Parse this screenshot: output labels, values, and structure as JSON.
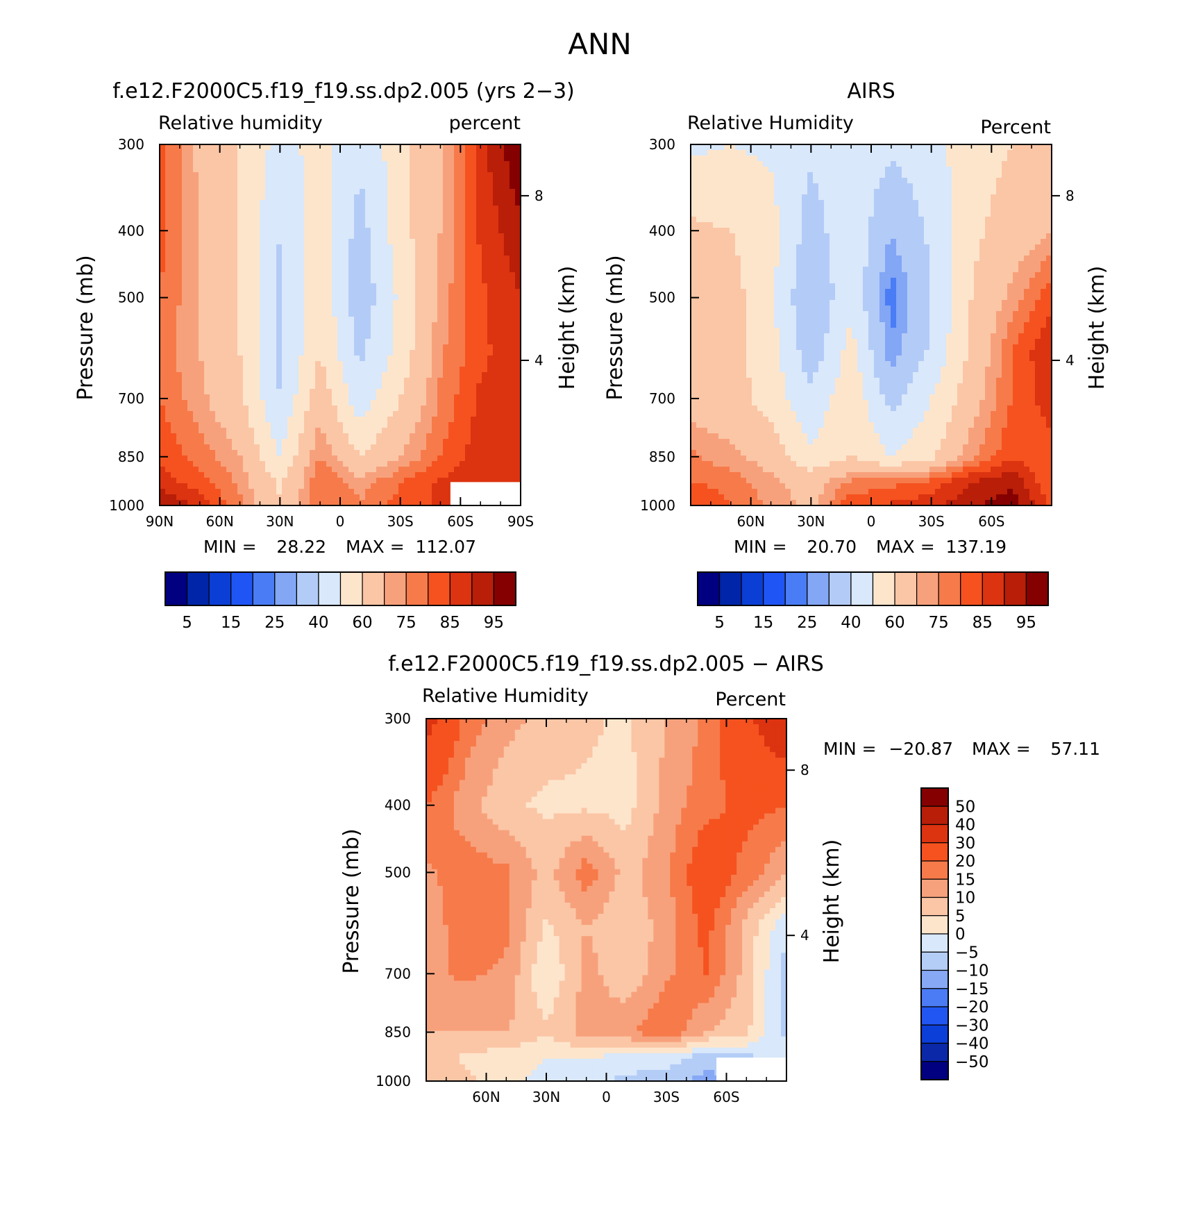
{
  "figure": {
    "title": "ANN",
    "colors": {
      "abs_palette": [
        "#000080",
        "#0025a8",
        "#0a3ed4",
        "#1f55f5",
        "#4a7cf5",
        "#83a6f5",
        "#b3cbf7",
        "#d9e8fa",
        "#fde5cc",
        "#fbc6a6",
        "#f7a17c",
        "#f77a4a",
        "#f5521f",
        "#dc3310",
        "#b81e08",
        "#850000"
      ],
      "diff_palette": [
        "#000080",
        "#0a28a8",
        "#0c3ed8",
        "#2156f2",
        "#4b7cf5",
        "#86a8f5",
        "#b4cdf7",
        "#d9e8fa",
        "#fde5cc",
        "#fbc6a6",
        "#f7a17c",
        "#f77a4a",
        "#f5521f",
        "#dc3310",
        "#b81e08",
        "#850000"
      ]
    }
  },
  "chart_data": [
    {
      "id": "model",
      "type": "heatmap",
      "title": "f.e12.F2000C5.f19_f19.ss.dp2.005 (yrs 2−3)",
      "left_subtitle": "Relative humidity",
      "right_subtitle": "percent",
      "xlabel": "",
      "ylabel": "Pressure (mb)",
      "y2label": "Height (km)",
      "x_ticklabels": [
        "90N",
        "60N",
        "30N",
        "0",
        "30S",
        "60S",
        "90S"
      ],
      "x_tick_values": [
        90,
        60,
        30,
        0,
        -30,
        -60,
        -90
      ],
      "xlim": [
        90,
        -90
      ],
      "y_ticklabels": [
        "300",
        "400",
        "500",
        "700",
        "850",
        "1000"
      ],
      "y_tick_values": [
        300,
        400,
        500,
        700,
        850,
        1000
      ],
      "ylim": [
        300,
        1000
      ],
      "y2_ticklabels": [
        "8",
        "4"
      ],
      "y2_tick_values": [
        8,
        4
      ],
      "min_label": "MIN =",
      "min_value": "28.22",
      "max_label": "MAX =",
      "max_value": "112.07",
      "levels": [
        5,
        10,
        15,
        20,
        25,
        30,
        40,
        50,
        60,
        70,
        75,
        80,
        85,
        90,
        95
      ],
      "colorbar_labels": [
        "5",
        "15",
        "25",
        "40",
        "60",
        "75",
        "85",
        "95"
      ],
      "grid_lat": [
        90,
        70,
        50,
        30,
        10,
        -10,
        -30,
        -50,
        -70,
        -90
      ],
      "grid_p": [
        300,
        400,
        500,
        600,
        700,
        850,
        925,
        1000
      ],
      "values": [
        [
          82,
          68,
          60,
          46,
          54,
          42,
          56,
          70,
          88,
          100
        ],
        [
          82,
          70,
          60,
          40,
          55,
          36,
          56,
          70,
          86,
          94
        ],
        [
          80,
          70,
          60,
          38,
          58,
          33,
          52,
          72,
          84,
          90
        ],
        [
          78,
          70,
          60,
          38,
          60,
          38,
          54,
          74,
          84,
          88
        ],
        [
          80,
          72,
          62,
          40,
          66,
          44,
          60,
          76,
          86,
          86
        ],
        [
          84,
          78,
          70,
          50,
          76,
          60,
          70,
          80,
          88,
          86
        ],
        [
          88,
          82,
          74,
          58,
          80,
          72,
          80,
          86,
          90,
          86
        ],
        [
          96,
          88,
          76,
          62,
          80,
          76,
          82,
          86,
          86,
          84
        ]
      ],
      "missing_region": {
        "lat_from": -55,
        "lat_to": -90,
        "p_from": 925,
        "p_to": 1000
      }
    },
    {
      "id": "obs",
      "type": "heatmap",
      "title": "AIRS",
      "left_subtitle": "Relative Humidity",
      "right_subtitle": "Percent",
      "xlabel": "",
      "ylabel": "Pressure (mb)",
      "y2label": "Height (km)",
      "x_ticklabels": [
        "60N",
        "30N",
        "0",
        "30S",
        "60S"
      ],
      "x_tick_values": [
        60,
        30,
        0,
        -30,
        -60
      ],
      "xlim": [
        90,
        -90
      ],
      "y_ticklabels": [
        "300",
        "400",
        "500",
        "700",
        "850",
        "1000"
      ],
      "y_tick_values": [
        300,
        400,
        500,
        700,
        850,
        1000
      ],
      "ylim": [
        300,
        1000
      ],
      "y2_ticklabels": [
        "8",
        "4"
      ],
      "y2_tick_values": [
        8,
        4
      ],
      "min_label": "MIN =",
      "min_value": "20.70",
      "max_label": "MAX =",
      "max_value": "137.19",
      "levels": [
        5,
        10,
        15,
        20,
        25,
        30,
        40,
        50,
        60,
        70,
        75,
        80,
        85,
        90,
        95
      ],
      "colorbar_labels": [
        "5",
        "15",
        "25",
        "40",
        "60",
        "75",
        "85",
        "95"
      ],
      "grid_lat": [
        90,
        70,
        50,
        30,
        10,
        -10,
        -30,
        -50,
        -70,
        -90
      ],
      "grid_p": [
        300,
        400,
        500,
        600,
        700,
        850,
        925,
        1000
      ],
      "values": [
        [
          48,
          50,
          48,
          42,
          48,
          42,
          46,
          56,
          60,
          62
        ],
        [
          62,
          60,
          54,
          35,
          48,
          30,
          42,
          58,
          64,
          70
        ],
        [
          66,
          64,
          52,
          30,
          48,
          22,
          40,
          60,
          72,
          84
        ],
        [
          66,
          64,
          54,
          34,
          54,
          26,
          42,
          62,
          80,
          90
        ],
        [
          66,
          64,
          56,
          42,
          58,
          36,
          50,
          66,
          80,
          88
        ],
        [
          76,
          72,
          66,
          52,
          60,
          50,
          58,
          74,
          84,
          82
        ],
        [
          80,
          78,
          72,
          66,
          76,
          78,
          82,
          90,
          94,
          80
        ],
        [
          86,
          80,
          74,
          68,
          84,
          86,
          88,
          94,
          98,
          84
        ]
      ],
      "missing_region": null
    },
    {
      "id": "diff",
      "type": "heatmap",
      "title": "f.e12.F2000C5.f19_f19.ss.dp2.005 − AIRS",
      "left_subtitle": "Relative Humidity",
      "right_subtitle": "Percent",
      "xlabel": "",
      "ylabel": "Pressure (mb)",
      "y2label": "Height (km)",
      "x_ticklabels": [
        "60N",
        "30N",
        "0",
        "30S",
        "60S"
      ],
      "x_tick_values": [
        60,
        30,
        0,
        -30,
        -60
      ],
      "xlim": [
        90,
        -90
      ],
      "y_ticklabels": [
        "300",
        "400",
        "500",
        "700",
        "850",
        "1000"
      ],
      "y_tick_values": [
        300,
        400,
        500,
        700,
        850,
        1000
      ],
      "ylim": [
        300,
        1000
      ],
      "y2_ticklabels": [
        "8",
        "4"
      ],
      "y2_tick_values": [
        8,
        4
      ],
      "min_label": "MIN =",
      "min_value": "−20.87",
      "max_label": "MAX =",
      "max_value": "57.11",
      "levels": [
        -50,
        -40,
        -30,
        -20,
        -15,
        -10,
        -5,
        0,
        5,
        10,
        15,
        20,
        30,
        40,
        50
      ],
      "colorbar_labels": [
        "50",
        "40",
        "30",
        "20",
        "15",
        "10",
        "5",
        "0",
        "−5",
        "−10",
        "−15",
        "−20",
        "−30",
        "−40",
        "−50"
      ],
      "grid_lat": [
        90,
        70,
        50,
        30,
        10,
        -10,
        -30,
        -50,
        -70,
        -90
      ],
      "grid_p": [
        300,
        400,
        500,
        600,
        700,
        850,
        925,
        1000
      ],
      "values": [
        [
          34,
          18,
          12,
          8,
          6,
          4,
          10,
          16,
          28,
          40
        ],
        [
          20,
          12,
          6,
          4,
          4,
          3,
          12,
          18,
          22,
          20
        ],
        [
          14,
          18,
          16,
          8,
          18,
          8,
          14,
          26,
          18,
          10
        ],
        [
          12,
          18,
          16,
          4,
          10,
          6,
          12,
          22,
          8,
          -4
        ],
        [
          14,
          16,
          14,
          0,
          12,
          6,
          14,
          20,
          8,
          -8
        ],
        [
          10,
          10,
          10,
          6,
          12,
          14,
          20,
          10,
          6,
          -6
        ],
        [
          8,
          4,
          2,
          0,
          0,
          -2,
          -2,
          -8,
          -6,
          -4
        ],
        [
          10,
          6,
          2,
          -2,
          -4,
          -6,
          -8,
          -12,
          -8,
          -6
        ]
      ],
      "missing_region": {
        "lat_from": -55,
        "lat_to": -90,
        "p_from": 925,
        "p_to": 1000
      }
    }
  ]
}
